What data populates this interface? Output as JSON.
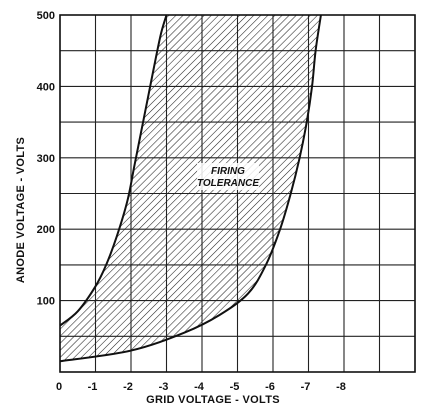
{
  "chart_data": {
    "type": "area",
    "title": "",
    "xlabel": "GRID VOLTAGE - VOLTS",
    "ylabel": "ANODE VOLTAGE - VOLTS",
    "xlim": [
      0,
      -10
    ],
    "ylim": [
      0,
      500
    ],
    "x_major_ticks": [
      0,
      -1,
      -2,
      -3,
      -4,
      -5,
      -6,
      -7,
      -8
    ],
    "x_tick_labels": [
      "0",
      "-1",
      "-2",
      "-3",
      "-4",
      "-5",
      "-6",
      "-7",
      "-8"
    ],
    "y_tick_values": [
      100,
      200,
      300,
      400,
      500
    ],
    "y_tick_labels": [
      "100",
      "200",
      "300",
      "400",
      "500"
    ],
    "grid": true,
    "region_label_lines": [
      "FIRING",
      "TOLERANCE"
    ],
    "series": [
      {
        "role": "upper-left boundary",
        "x": [
          0,
          -0.5,
          -1.0,
          -1.3,
          -1.6,
          -1.9,
          -2.1,
          -2.3,
          -2.5,
          -2.7,
          -2.85,
          -3.0
        ],
        "y": [
          65,
          85,
          120,
          150,
          190,
          240,
          290,
          340,
          390,
          440,
          475,
          500
        ]
      },
      {
        "role": "lower-right boundary",
        "x": [
          0,
          -2.0,
          -3.5,
          -4.5,
          -5.3,
          -5.8,
          -6.2,
          -6.5,
          -6.75,
          -6.95,
          -7.1,
          -7.2,
          -7.35
        ],
        "y": [
          15,
          30,
          55,
          80,
          110,
          150,
          200,
          250,
          300,
          350,
          400,
          450,
          500
        ]
      }
    ]
  }
}
